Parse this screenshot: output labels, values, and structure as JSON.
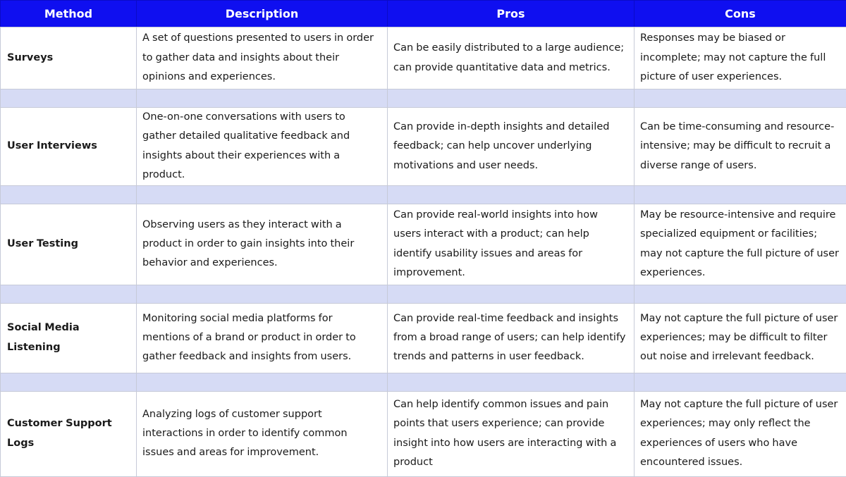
{
  "headers": {
    "method": "Method",
    "description": "Description",
    "pros": "Pros",
    "cons": "Cons"
  },
  "rows": [
    {
      "method": "Surveys",
      "description": "A set of questions presented to users in order to gather data and insights about their opinions and experiences.",
      "pros": "Can be easily distributed to a large audience; can provide quantitative data and metrics.",
      "cons": "Responses may be biased or incomplete; may not capture the full picture of user experiences."
    },
    {
      "method": "User Interviews",
      "description": "One-on-one conversations with users to gather detailed qualitative feedback and insights about their experiences with a product.",
      "pros": "Can provide in-depth insights and detailed feedback; can help uncover underlying motivations and user needs.",
      "cons": "Can be time-consuming and resource-intensive; may be difficult to recruit a diverse range of users."
    },
    {
      "method": "User Testing",
      "description": "Observing users as they interact with a product in order to gain insights into their behavior and experiences.",
      "pros": "Can provide real-world insights into how users interact with a product; can help identify usability issues and areas for improvement.",
      "cons": "May be resource-intensive and require specialized equipment or facilities; may not capture the full picture of user experiences."
    },
    {
      "method": "Social Media Listening",
      "description": "Monitoring social media platforms for mentions of a brand or product in order to gather feedback and insights from users.",
      "pros": "Can provide real-time feedback and insights from a broad range of users; can help identify trends and patterns in user feedback.",
      "cons": "May not capture the full picture of user experiences; may be difficult to filter out noise and irrelevant feedback."
    },
    {
      "method": "Customer Support Logs",
      "description": "Analyzing logs of customer support interactions in order to identify common issues and areas for improvement.",
      "pros": "Can help identify common issues and pain points that users experience; can provide insight into how users are interacting with a product",
      "cons": "May not capture the full picture of user experiences; may only reflect the experiences of users who have encountered issues."
    }
  ],
  "colors": {
    "header_bg": "#0f0ff0",
    "spacer_bg": "#d6dbf5",
    "border": "#c6cad8"
  }
}
